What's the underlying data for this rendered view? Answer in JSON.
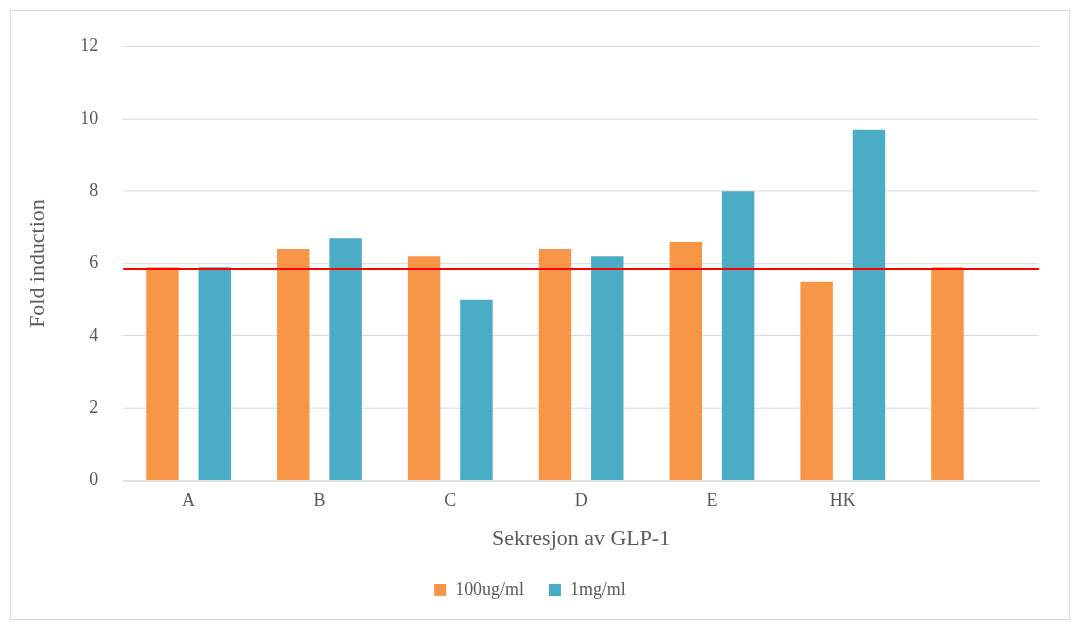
{
  "chart_data": {
    "type": "bar",
    "xlabel": "Sekresjon av GLP-1",
    "ylabel": "Fold induction",
    "categories": [
      "A",
      "B",
      "C",
      "D",
      "E",
      "HK",
      null
    ],
    "series": [
      {
        "name": "100ug/ml",
        "color": "#f79646",
        "values": [
          5.9,
          6.4,
          6.2,
          6.4,
          6.6,
          5.5,
          5.9
        ]
      },
      {
        "name": "1mg/ml",
        "color": "#4bacc6",
        "values": [
          5.9,
          6.7,
          5.0,
          6.2,
          8.0,
          9.7,
          null
        ]
      }
    ],
    "ylim": [
      0,
      12
    ],
    "yticks": [
      0,
      2,
      4,
      6,
      8,
      10,
      12
    ],
    "grid": "y",
    "legend": "bottom",
    "ref_lines": [
      {
        "axis": "y",
        "value": 5.85,
        "color": "#ff0000"
      }
    ]
  }
}
